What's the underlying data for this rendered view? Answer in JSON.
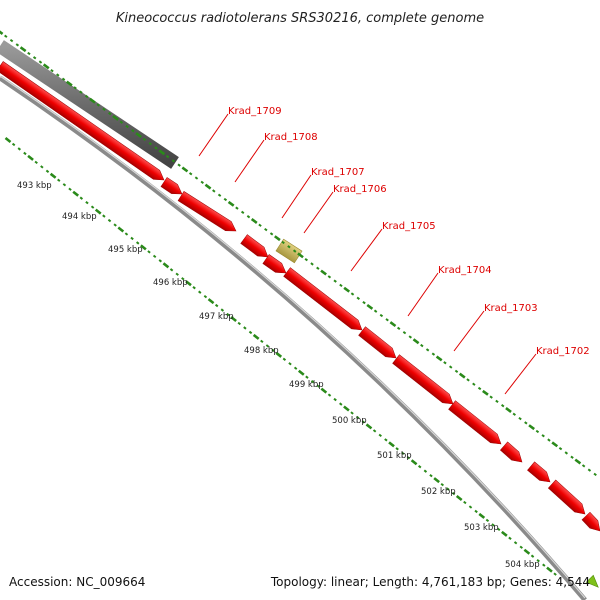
{
  "title": "Kineococcus radiotolerans SRS30216, complete genome",
  "accession": "Accession: NC_009664",
  "summary": "Topology: linear; Length: 4,761,183 bp; Genes: 4,544",
  "scale_ticks": [
    "493 kbp",
    "494 kbp",
    "495 kbp",
    "496 kbp",
    "497 kbp",
    "498 kbp",
    "499 kbp",
    "500 kbp",
    "501 kbp",
    "502 kbp",
    "503 kbp",
    "504 kbp"
  ],
  "gene_labels": [
    "Krad_1709",
    "Krad_1708",
    "Krad_1707",
    "Krad_1706",
    "Krad_1705",
    "Krad_1704",
    "Krad_1703",
    "Krad_1702"
  ],
  "colors": {
    "gene": "#ee0000",
    "gene_label": "#dd0000",
    "backbone": "#8a8a8a",
    "gray_feature": "#6b6b6b",
    "tan_feature": "#c8b560",
    "tick": "#2a8a1a",
    "nav_arrow": "#7ec01a"
  }
}
